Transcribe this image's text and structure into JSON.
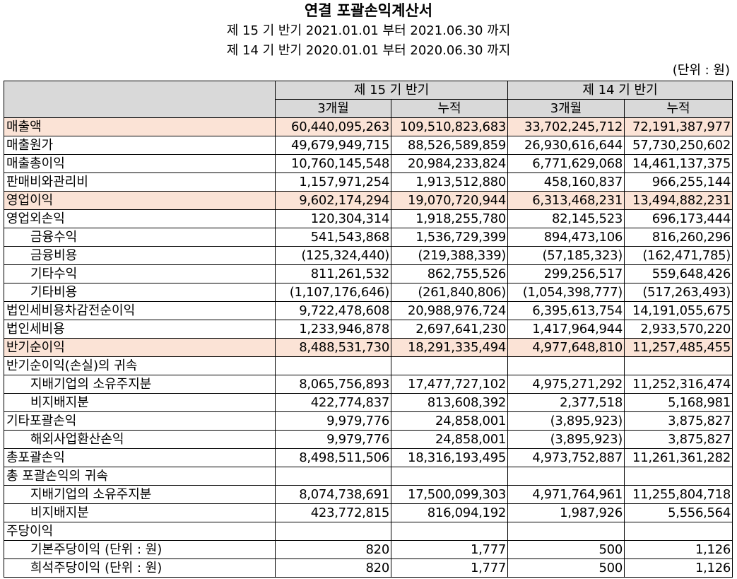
{
  "title": "연결 포괄손익계산서",
  "period_current": "제 15 기 반기 2021.01.01 부터 2021.06.30 까지",
  "period_prior": "제 14 기 반기 2020.01.01 부터 2020.06.30 까지",
  "unit": "(단위 : 원)",
  "header": {
    "current": "제 15 기 반기",
    "prior": "제 14 기 반기",
    "cols": [
      "3개월",
      "누적",
      "3개월",
      "누적"
    ]
  },
  "highlight_color": "#fbe3d6",
  "header_color": "#d9d9d9",
  "rows": [
    {
      "label": "매출액",
      "indent": false,
      "highlight": true,
      "values": [
        "60,440,095,263",
        "109,510,823,683",
        "33,702,245,712",
        "72,191,387,977"
      ]
    },
    {
      "label": "매출원가",
      "indent": false,
      "highlight": false,
      "values": [
        "49,679,949,715",
        "88,526,589,859",
        "26,930,616,644",
        "57,730,250,602"
      ]
    },
    {
      "label": "매출총이익",
      "indent": false,
      "highlight": false,
      "values": [
        "10,760,145,548",
        "20,984,233,824",
        "6,771,629,068",
        "14,461,137,375"
      ]
    },
    {
      "label": "판매비와관리비",
      "indent": false,
      "highlight": false,
      "values": [
        "1,157,971,254",
        "1,913,512,880",
        "458,160,837",
        "966,255,144"
      ]
    },
    {
      "label": "영업이익",
      "indent": false,
      "highlight": true,
      "values": [
        "9,602,174,294",
        "19,070,720,944",
        "6,313,468,231",
        "13,494,882,231"
      ]
    },
    {
      "label": "영업외손익",
      "indent": false,
      "highlight": false,
      "values": [
        "120,304,314",
        "1,918,255,780",
        "82,145,523",
        "696,173,444"
      ]
    },
    {
      "label": "금융수익",
      "indent": true,
      "highlight": false,
      "values": [
        "541,543,868",
        "1,536,729,399",
        "894,473,106",
        "816,260,296"
      ]
    },
    {
      "label": "금융비용",
      "indent": true,
      "highlight": false,
      "values": [
        "(125,324,440)",
        "(219,388,339)",
        "(57,185,323)",
        "(162,471,785)"
      ]
    },
    {
      "label": "기타수익",
      "indent": true,
      "highlight": false,
      "values": [
        "811,261,532",
        "862,755,526",
        "299,256,517",
        "559,648,426"
      ]
    },
    {
      "label": "기타비용",
      "indent": true,
      "highlight": false,
      "values": [
        "(1,107,176,646)",
        "(261,840,806)",
        "(1,054,398,777)",
        "(517,263,493)"
      ]
    },
    {
      "label": "법인세비용차감전순이익",
      "indent": false,
      "highlight": false,
      "values": [
        "9,722,478,608",
        "20,988,976,724",
        "6,395,613,754",
        "14,191,055,675"
      ]
    },
    {
      "label": "법인세비용",
      "indent": false,
      "highlight": false,
      "values": [
        "1,233,946,878",
        "2,697,641,230",
        "1,417,964,944",
        "2,933,570,220"
      ]
    },
    {
      "label": "반기순이익",
      "indent": false,
      "highlight": true,
      "values": [
        "8,488,531,730",
        "18,291,335,494",
        "4,977,648,810",
        "11,257,485,455"
      ]
    },
    {
      "label": "반기순이익(손실)의 귀속",
      "indent": false,
      "highlight": false,
      "values": [
        "",
        "",
        "",
        ""
      ]
    },
    {
      "label": "지배기업의 소유주지분",
      "indent": true,
      "highlight": false,
      "values": [
        "8,065,756,893",
        "17,477,727,102",
        "4,975,271,292",
        "11,252,316,474"
      ]
    },
    {
      "label": "비지배지분",
      "indent": true,
      "highlight": false,
      "values": [
        "422,774,837",
        "813,608,392",
        "2,377,518",
        "5,168,981"
      ]
    },
    {
      "label": "기타포괄손익",
      "indent": false,
      "highlight": false,
      "values": [
        "9,979,776",
        "24,858,001",
        "(3,895,923)",
        "3,875,827"
      ]
    },
    {
      "label": "해외사업환산손익",
      "indent": true,
      "highlight": false,
      "values": [
        "9,979,776",
        "24,858,001",
        "(3,895,923)",
        "3,875,827"
      ]
    },
    {
      "label": "총포괄손익",
      "indent": false,
      "highlight": false,
      "values": [
        "8,498,511,506",
        "18,316,193,495",
        "4,973,752,887",
        "11,261,361,282"
      ]
    },
    {
      "label": "총 포괄손익의 귀속",
      "indent": false,
      "highlight": false,
      "values": [
        "",
        "",
        "",
        ""
      ]
    },
    {
      "label": "지배기업의 소유주지분",
      "indent": true,
      "highlight": false,
      "values": [
        "8,074,738,691",
        "17,500,099,303",
        "4,971,764,961",
        "11,255,804,718"
      ]
    },
    {
      "label": "비지배지분",
      "indent": true,
      "highlight": false,
      "values": [
        "423,772,815",
        "816,094,192",
        "1,987,926",
        "5,556,564"
      ]
    },
    {
      "label": "주당이익",
      "indent": false,
      "highlight": false,
      "values": [
        "",
        "",
        "",
        ""
      ]
    },
    {
      "label": "기본주당이익 (단위 : 원)",
      "indent": true,
      "highlight": false,
      "values": [
        "820",
        "1,777",
        "500",
        "1,126"
      ]
    },
    {
      "label": "희석주당이익 (단위 : 원)",
      "indent": true,
      "highlight": false,
      "values": [
        "820",
        "1,777",
        "500",
        "1,126"
      ]
    }
  ]
}
